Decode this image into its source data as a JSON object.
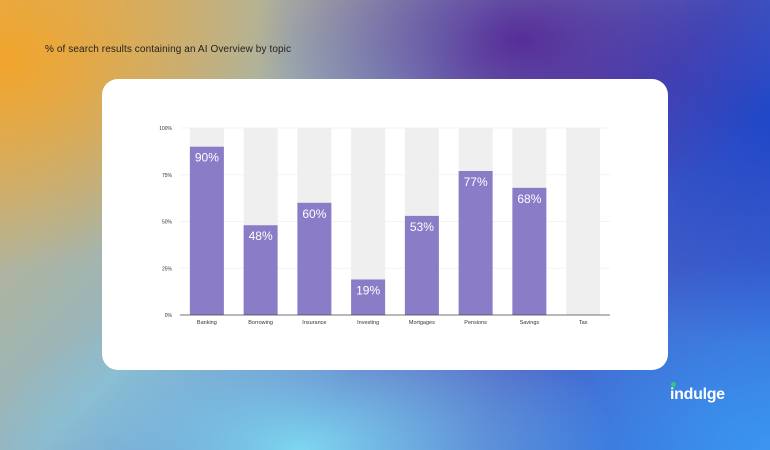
{
  "title": "% of search results containing an AI Overview by topic",
  "logo": {
    "text": "indulge",
    "dot_color": "#2ecc71"
  },
  "chart_data": {
    "type": "bar",
    "categories": [
      "Banking",
      "Borrowing",
      "Insurance",
      "Investing",
      "Mortgages",
      "Pensions",
      "Savings",
      "Tax"
    ],
    "values": [
      90,
      48,
      60,
      19,
      53,
      77,
      68,
      0
    ],
    "data_labels": [
      "90%",
      "48%",
      "60%",
      "19%",
      "53%",
      "77%",
      "68%",
      ""
    ],
    "ylim": [
      0,
      100
    ],
    "yticks": [
      0,
      25,
      50,
      75,
      100
    ],
    "ytick_labels": [
      "0%",
      "25%",
      "50%",
      "75%",
      "100%"
    ],
    "xlabel": "",
    "ylabel": "",
    "background_bar_value": 100,
    "grid": true,
    "colors": {
      "bar": "#8b7cc8",
      "background_bar": "#efefef",
      "data_label": "#ffffff",
      "axis_text": "#333333"
    }
  }
}
